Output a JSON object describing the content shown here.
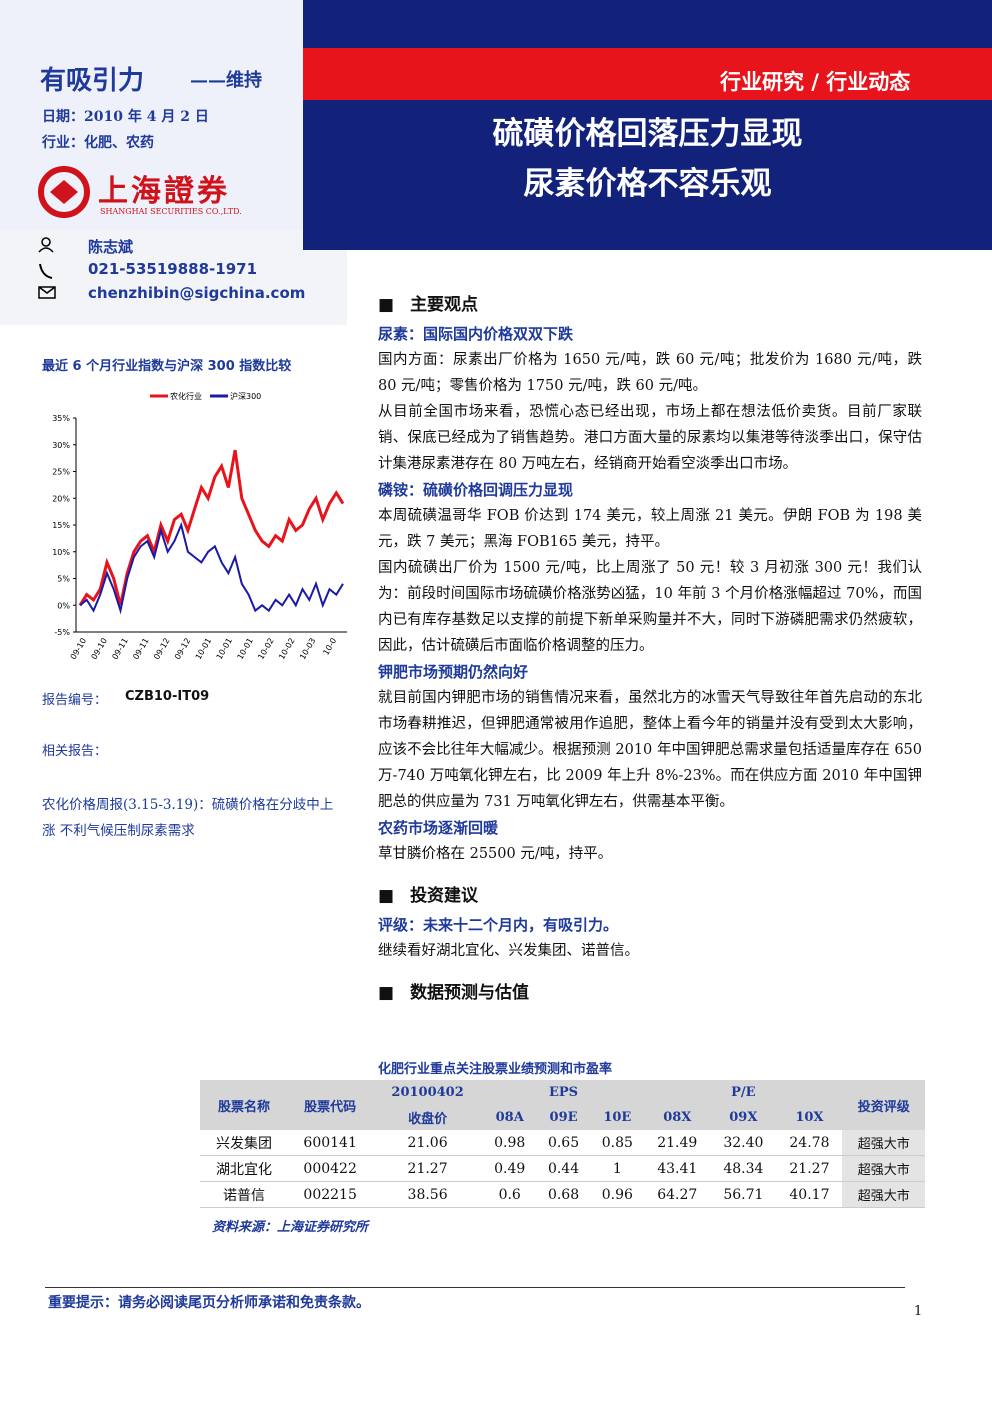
{
  "header": {
    "rating": "有吸引力",
    "rating_note": "——维持",
    "date": "日期：2010 年 4 月 2 日",
    "industry": "行业：化肥、农药",
    "logo_cn": "上海證券",
    "logo_en": "SHANGHAI SECURITIES CO.,LTD.",
    "category": "行业研究 / 行业动态",
    "title_1": "硫磺价格回落压力显现",
    "title_2": "尿素价格不容乐观"
  },
  "contact": {
    "name": "陈志斌",
    "phone": "021-53519888-1971",
    "email": "chenzhibin@sigchina.com"
  },
  "chart_data": {
    "type": "line",
    "title": "最近 6 个月行业指数与沪深 300 指数比较",
    "x_labels": [
      "09-10",
      "09-10",
      "09-11",
      "09-11",
      "09-12",
      "09-12",
      "10-01",
      "10-01",
      "10-01",
      "10-02",
      "10-02",
      "10-03",
      "10-0"
    ],
    "ylim": [
      -5,
      35
    ],
    "yticks": [
      {
        "value": -5,
        "label": "-5%"
      },
      {
        "value": 0,
        "label": "0%"
      },
      {
        "value": 5,
        "label": "5%"
      },
      {
        "value": 10,
        "label": "10%"
      },
      {
        "value": 15,
        "label": "15%"
      },
      {
        "value": 20,
        "label": "20%"
      },
      {
        "value": 25,
        "label": "25%"
      },
      {
        "value": 30,
        "label": "30%"
      },
      {
        "value": 35,
        "label": "35%"
      }
    ],
    "series": [
      {
        "name": "农化行业",
        "color": "#e8141c",
        "values": [
          0,
          2,
          1,
          3,
          8,
          5,
          0,
          6,
          10,
          12,
          13,
          10,
          15,
          12,
          16,
          17,
          14,
          18,
          22,
          20,
          24,
          26,
          22,
          29,
          20,
          17,
          14,
          12,
          11,
          13,
          12,
          16,
          14,
          15,
          18,
          20,
          16,
          19,
          21,
          19
        ]
      },
      {
        "name": "沪深300",
        "color": "#1a1aa8",
        "values": [
          0,
          1,
          -1,
          2,
          6,
          3,
          -1,
          5,
          9,
          11,
          12,
          9,
          14,
          10,
          12,
          15,
          10,
          9,
          8,
          10,
          11,
          8,
          6,
          9,
          4,
          2,
          -1,
          0,
          -1,
          1,
          0,
          2,
          0,
          3,
          1,
          4,
          0,
          3,
          2,
          4
        ]
      }
    ]
  },
  "left": {
    "report_no_label": "报告编号：",
    "report_no": "CZB10-IT09",
    "related_label": "相关报告：",
    "related": "农化价格周报(3.15-3.19)：硫磺价格在分歧中上涨 不利气候压制尿素需求"
  },
  "body": {
    "sec1": "主要观点",
    "h1": "尿素：国际国内价格双双下跌",
    "p1": [
      "国内方面：尿素出厂价格为 1650 元/吨，跌 60 元/吨；批发价为 1680 元/吨，跌 80 元/吨；零售价格为 1750 元/吨，跌 60 元/吨。",
      "从目前全国市场来看，恐慌心态已经出现，市场上都在想法低价卖货。目前厂家联销、保底已经成为了销售趋势。港口方面大量的尿素均以集港等待淡季出口，保守估计集港尿素港存在 80 万吨左右，经销商开始看空淡季出口市场。"
    ],
    "h2": "磷铵：硫磺价格回调压力显现",
    "p2": [
      "本周硫磺温哥华 FOB 价达到 174 美元，较上周涨 21 美元。伊朗 FOB 为 198 美元，跌 7 美元；黑海 FOB165 美元，持平。",
      "国内硫磺出厂价为 1500 元/吨，比上周涨了 50 元！较 3 月初涨 300 元！我们认为：前段时间国际市场硫磺价格涨势凶猛，10 年前 3 个月价格涨幅超过 70%，而国内已有库存基数足以支撑的前提下新单采购量并不大，同时下游磷肥需求仍然疲软，因此，估计硫磺后市面临价格调整的压力。"
    ],
    "h3": "钾肥市场预期仍然向好",
    "p3": [
      "就目前国内钾肥市场的销售情况来看，虽然北方的冰雪天气导致往年首先启动的东北市场春耕推迟，但钾肥通常被用作追肥，整体上看今年的销量并没有受到太大影响，应该不会比往年大幅减少。根据预测 2010 年中国钾肥总需求量包括适量库存在 650 万-740 万吨氧化钾左右，比 2009 年上升 8%-23%。而在供应方面 2010 年中国钾肥总的供应量为 731 万吨氧化钾左右，供需基本平衡。"
    ],
    "h4": "农药市场逐渐回暖",
    "p4": [
      "草甘膦价格在 25500 元/吨，持平。"
    ],
    "sec2": "投资建议",
    "h5": "评级：未来十二个月内，有吸引力。",
    "p5": [
      "继续看好湖北宜化、兴发集团、诺普信。"
    ],
    "sec3": "数据预测与估值"
  },
  "table": {
    "caption": "化肥行业重点关注股票业绩预测和市盈率",
    "h_name": "股票名称",
    "h_code": "股票代码",
    "h_date": "20100402",
    "h_close": "收盘价",
    "h_eps": "EPS",
    "h_pe": "P/E",
    "h_rating": "投资评级",
    "sub": [
      "08A",
      "09E",
      "10E",
      "08X",
      "09X",
      "10X"
    ],
    "rows": [
      [
        "兴发集团",
        "600141",
        "21.06",
        "0.98",
        "0.65",
        "0.85",
        "21.49",
        "32.40",
        "24.78",
        "超强大市"
      ],
      [
        "湖北宜化",
        "000422",
        "21.27",
        "0.49",
        "0.44",
        "1",
        "43.41",
        "48.34",
        "21.27",
        "超强大市"
      ],
      [
        "诺普信",
        "002215",
        "38.56",
        "0.6",
        "0.68",
        "0.96",
        "64.27",
        "56.71",
        "40.17",
        "超强大市"
      ]
    ],
    "source": "资料来源：上海证券研究所"
  },
  "footer": {
    "notice": "重要提示：请务必阅读尾页分析师承诺和免责条款。",
    "page": "1"
  }
}
